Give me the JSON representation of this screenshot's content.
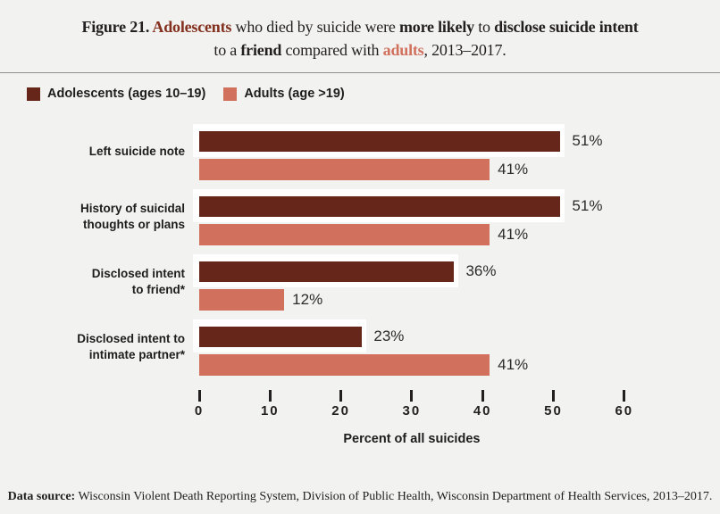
{
  "title": {
    "line1": [
      "Figure 21. ",
      "Adolescents",
      " who died by suicide were ",
      "more likely",
      " to ",
      "disclose suicide intent"
    ],
    "line2": [
      "to a ",
      "friend",
      " compared with ",
      "adults",
      ", 2013–2017."
    ]
  },
  "legend": {
    "items": [
      {
        "label": "Adolescents (ages 10–19)",
        "color": "#66271a"
      },
      {
        "label": "Adults (age >19)",
        "color": "#d2705e"
      }
    ]
  },
  "chart_data": {
    "type": "bar",
    "orientation": "horizontal",
    "title": "Figure 21. Adolescents who died by suicide were more likely to disclose suicide intent to a friend compared with adults, 2013–2017.",
    "categories": [
      "Left suicide note",
      "History of suicidal\nthoughts or plans",
      "Disclosed intent\nto friend*",
      "Disclosed intent to\nintimate partner*"
    ],
    "series": [
      {
        "name": "Adolescents (ages 10–19)",
        "color": "#66271a",
        "values": [
          51,
          51,
          36,
          23
        ]
      },
      {
        "name": "Adults (age >19)",
        "color": "#d2705e",
        "values": [
          41,
          41,
          12,
          41
        ]
      }
    ],
    "value_labels": [
      [
        "51%",
        "51%",
        "36%",
        "23%"
      ],
      [
        "41%",
        "41%",
        "12%",
        "41%"
      ]
    ],
    "xlabel": "Percent of all suicides",
    "x_ticks": [
      0,
      10,
      20,
      30,
      40,
      50,
      60
    ],
    "xlim": [
      0,
      60
    ],
    "grid": false,
    "legend_position": "top-left"
  },
  "footer": {
    "label": "Data source:",
    "text": " Wisconsin Violent Death Reporting System, Division of Public Health, Wisconsin Department of Health Services, 2013–2017."
  }
}
